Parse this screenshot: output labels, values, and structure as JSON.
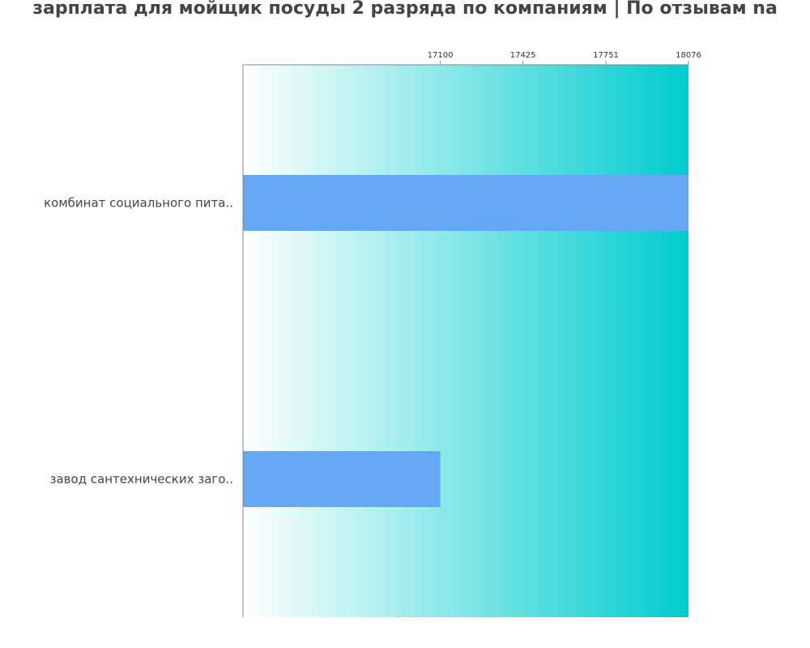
{
  "chart_data": {
    "type": "bar",
    "orientation": "horizontal",
    "title": "зарплата для мойщик посуды 2 разряда по компаниям  | По отзывам na",
    "categories": [
      "комбинат социального пита..",
      "завод сантехнических заго.."
    ],
    "values": [
      18076,
      17100
    ],
    "xlim": [
      16324,
      18076
    ],
    "xticks": [
      "17100",
      "17425",
      "17751",
      "18076"
    ],
    "xlabel": "",
    "ylabel": "",
    "grid": false,
    "legend": "none",
    "colors": {
      "bar": "#64a8f5",
      "background_start": "#ffffff",
      "background_end": "#00cccf",
      "axis": "#888888",
      "text": "#444444"
    }
  }
}
